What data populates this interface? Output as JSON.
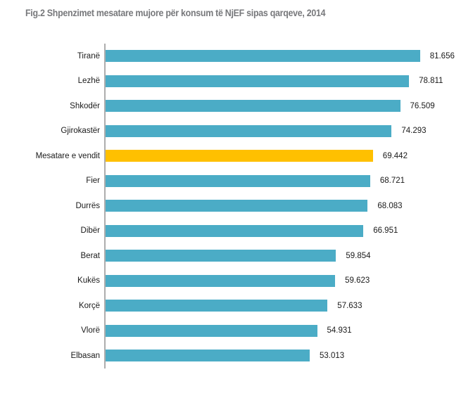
{
  "title": "Fig.2 Shpenzimet mesatare mujore për konsum të NjEF sipas qarqeve, 2014",
  "colors": {
    "bar": "#4BACC6",
    "highlight_bar": "#FFC000",
    "title_text": "#77787B",
    "axis_line": "#ADADAD",
    "label_text": "#1A1A1A",
    "background": "#FFFFFF"
  },
  "chart_data": {
    "type": "bar",
    "orientation": "horizontal",
    "title": "Fig.2 Shpenzimet mesatare mujore për konsum të NjEF sipas qarqeve, 2014",
    "categories": [
      "Tiranë",
      "Lezhë",
      "Shkodër",
      "Gjirokastër",
      "Mesatare e vendit",
      "Fier",
      "Durrës",
      "Dibër",
      "Berat",
      "Kukës",
      "Korçë",
      "Vlorë",
      "Elbasan"
    ],
    "values": [
      81.656,
      78.811,
      76.509,
      74.293,
      69.442,
      68.721,
      68.083,
      66.951,
      59.854,
      59.623,
      57.633,
      54.931,
      53.013
    ],
    "value_labels": [
      "81.656",
      "78.811",
      "76.509",
      "74.293",
      "69.442",
      "68.721",
      "68.083",
      "66.951",
      "59.854",
      "59.623",
      "57.633",
      "54.931",
      "53.013"
    ],
    "highlighted_category": "Mesatare e vendit",
    "highlight_index": 4,
    "xlabel": "",
    "ylabel": "",
    "xlim": [
      0,
      90
    ],
    "grid": false,
    "legend": false,
    "data_labels": true
  }
}
